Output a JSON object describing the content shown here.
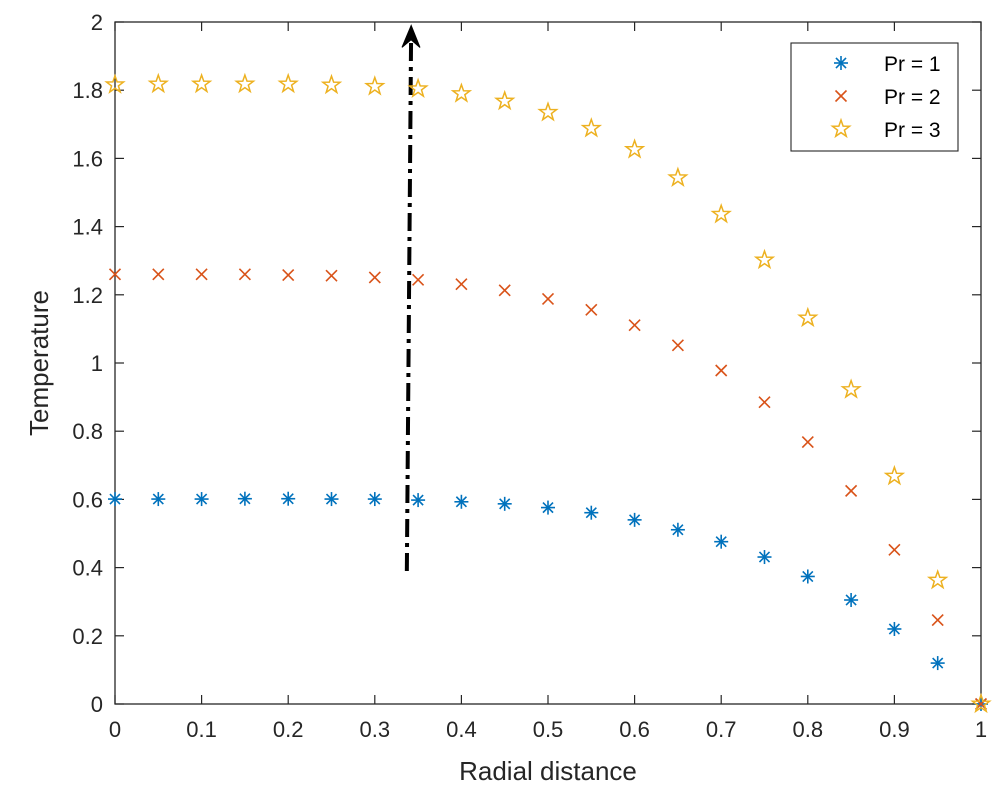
{
  "chart_data": {
    "type": "scatter",
    "title": "",
    "xlabel": "Radial distance",
    "ylabel": "Temperature",
    "xlim": [
      0,
      1
    ],
    "ylim": [
      0,
      2
    ],
    "xticks": [
      0,
      0.1,
      0.2,
      0.3,
      0.4,
      0.5,
      0.6,
      0.7,
      0.8,
      0.9,
      1
    ],
    "xtick_labels": [
      "0",
      "0.1",
      "0.2",
      "0.3",
      "0.4",
      "0.5",
      "0.6",
      "0.7",
      "0.8",
      "0.9",
      "1"
    ],
    "yticks": [
      0,
      0.2,
      0.4,
      0.6,
      0.8,
      1,
      1.2,
      1.4,
      1.6,
      1.8,
      2
    ],
    "ytick_labels": [
      "0",
      "0.2",
      "0.4",
      "0.6",
      "0.8",
      "1",
      "1.2",
      "1.4",
      "1.6",
      "1.8",
      "2"
    ],
    "grid": false,
    "legend_position": "top-right",
    "x": [
      0,
      0.05,
      0.1,
      0.15,
      0.2,
      0.25,
      0.3,
      0.35,
      0.4,
      0.45,
      0.5,
      0.55,
      0.6,
      0.65,
      0.7,
      0.75,
      0.8,
      0.85,
      0.9,
      0.95,
      1
    ],
    "series": [
      {
        "name": "Pr = 1",
        "marker": "asterisk",
        "color": "#0072BD",
        "values": [
          0.601,
          0.601,
          0.601,
          0.602,
          0.602,
          0.601,
          0.601,
          0.598,
          0.593,
          0.587,
          0.576,
          0.561,
          0.54,
          0.511,
          0.476,
          0.431,
          0.374,
          0.305,
          0.22,
          0.12,
          0
        ]
      },
      {
        "name": "Pr = 2",
        "marker": "x",
        "color": "#D95319",
        "values": [
          1.26,
          1.26,
          1.26,
          1.26,
          1.258,
          1.256,
          1.251,
          1.244,
          1.231,
          1.213,
          1.188,
          1.156,
          1.111,
          1.052,
          0.978,
          0.885,
          0.768,
          0.625,
          0.452,
          0.246,
          0
        ]
      },
      {
        "name": "Pr = 3",
        "marker": "star",
        "color": "#EDB120",
        "values": [
          1.816,
          1.818,
          1.818,
          1.818,
          1.818,
          1.815,
          1.811,
          1.804,
          1.79,
          1.768,
          1.735,
          1.688,
          1.626,
          1.543,
          1.436,
          1.302,
          1.132,
          0.922,
          0.668,
          0.363,
          0
        ]
      }
    ],
    "annotations": [
      {
        "type": "arrow",
        "style": "dash-dot",
        "color": "#000000",
        "from": [
          0.337,
          0.39
        ],
        "to": [
          0.342,
          1.99
        ]
      }
    ]
  }
}
